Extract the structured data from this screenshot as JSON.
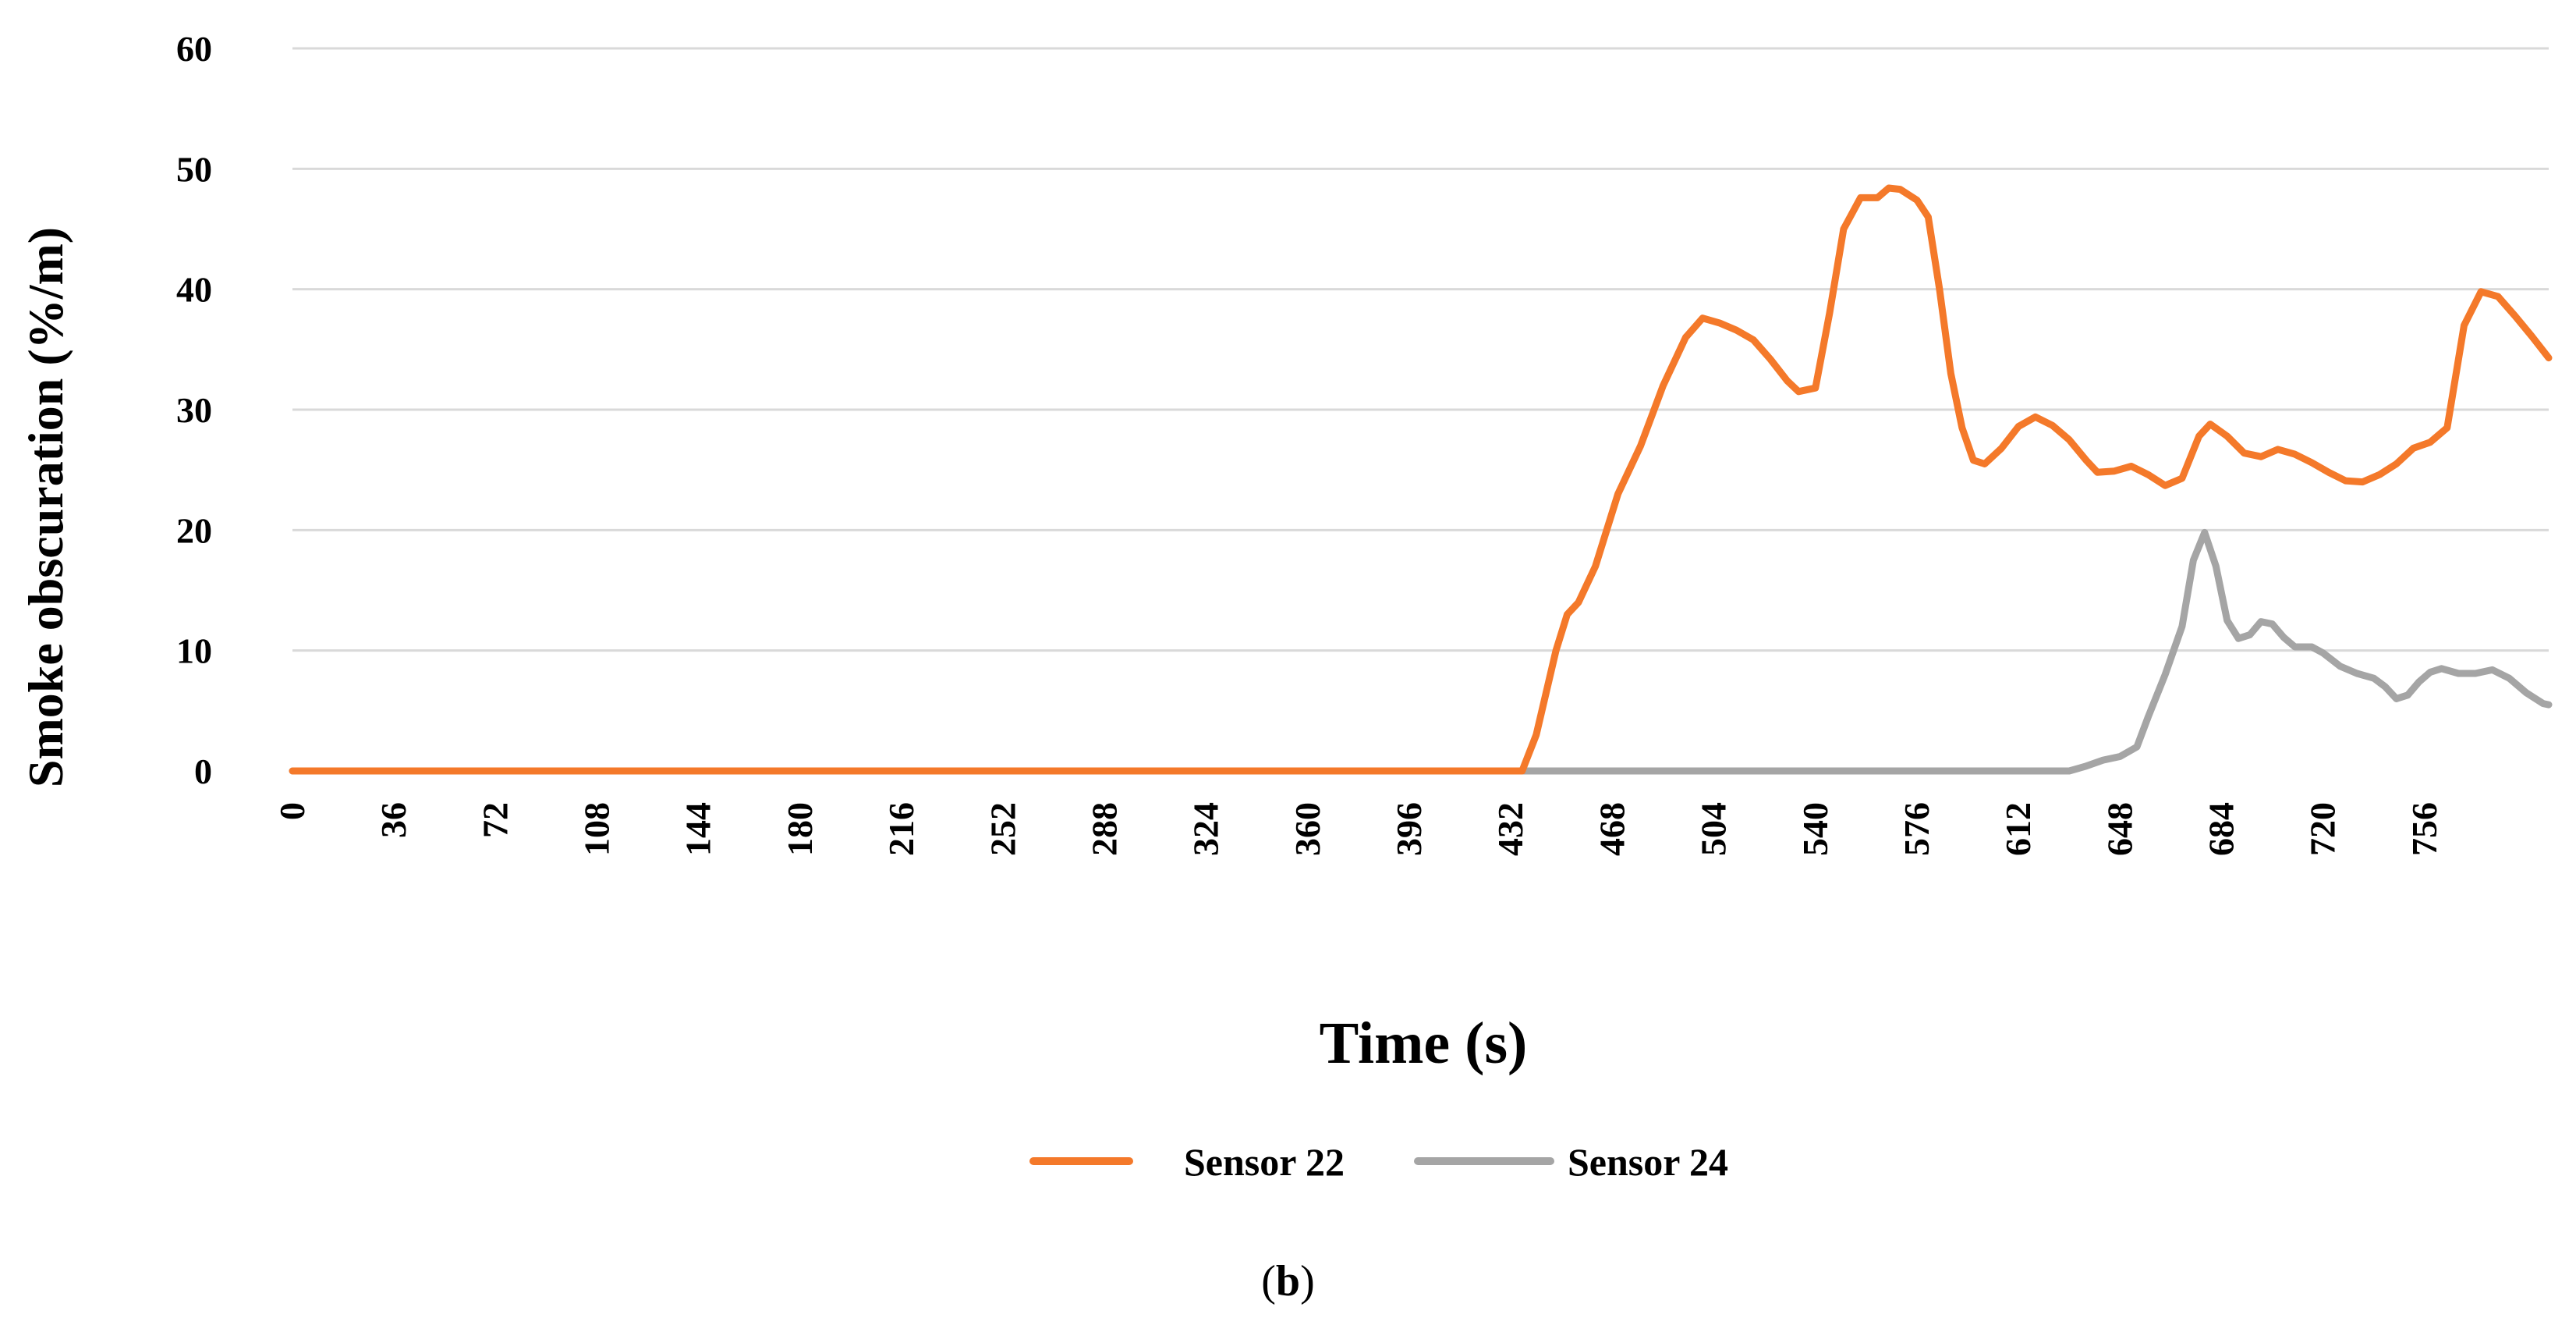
{
  "chart_data": {
    "type": "line",
    "title": "",
    "xlabel": "Time (s)",
    "ylabel": "Smoke obscuration (%/m)",
    "xlim": [
      0,
      800
    ],
    "ylim": [
      0,
      60
    ],
    "x_ticks": [
      0,
      36,
      72,
      108,
      144,
      180,
      216,
      252,
      288,
      324,
      360,
      396,
      432,
      468,
      504,
      540,
      576,
      612,
      648,
      684,
      720,
      756
    ],
    "y_ticks": [
      0,
      10,
      20,
      30,
      40,
      50,
      60
    ],
    "grid": "horizontal",
    "legend_position": "bottom",
    "series": [
      {
        "name": "Sensor 22",
        "color": "#F4792A",
        "points": [
          [
            0,
            0
          ],
          [
            436,
            0
          ],
          [
            441,
            3
          ],
          [
            448,
            10
          ],
          [
            452,
            13
          ],
          [
            456,
            14
          ],
          [
            462,
            17
          ],
          [
            470,
            23
          ],
          [
            478,
            27
          ],
          [
            486,
            32
          ],
          [
            494,
            36
          ],
          [
            500,
            37.6
          ],
          [
            506,
            37.2
          ],
          [
            512,
            36.6
          ],
          [
            518,
            35.8
          ],
          [
            524,
            34.2
          ],
          [
            530,
            32.4
          ],
          [
            534,
            31.5
          ],
          [
            540,
            31.8
          ],
          [
            545,
            38
          ],
          [
            550,
            45
          ],
          [
            556,
            47.6
          ],
          [
            562,
            47.6
          ],
          [
            566,
            48.4
          ],
          [
            570,
            48.3
          ],
          [
            576,
            47.4
          ],
          [
            580,
            46
          ],
          [
            584,
            40
          ],
          [
            588,
            33
          ],
          [
            592,
            28.5
          ],
          [
            596,
            25.8
          ],
          [
            600,
            25.5
          ],
          [
            606,
            26.8
          ],
          [
            612,
            28.6
          ],
          [
            618,
            29.4
          ],
          [
            624,
            28.7
          ],
          [
            630,
            27.5
          ],
          [
            636,
            25.8
          ],
          [
            640,
            24.8
          ],
          [
            646,
            24.9
          ],
          [
            652,
            25.3
          ],
          [
            658,
            24.6
          ],
          [
            664,
            23.7
          ],
          [
            670,
            24.3
          ],
          [
            676,
            27.8
          ],
          [
            680,
            28.8
          ],
          [
            686,
            27.8
          ],
          [
            692,
            26.4
          ],
          [
            698,
            26.1
          ],
          [
            704,
            26.7
          ],
          [
            710,
            26.3
          ],
          [
            716,
            25.6
          ],
          [
            722,
            24.8
          ],
          [
            728,
            24.1
          ],
          [
            734,
            24
          ],
          [
            740,
            24.6
          ],
          [
            746,
            25.5
          ],
          [
            752,
            26.8
          ],
          [
            758,
            27.3
          ],
          [
            764,
            28.5
          ],
          [
            770,
            37
          ],
          [
            776,
            39.8
          ],
          [
            782,
            39.4
          ],
          [
            788,
            37.8
          ],
          [
            794,
            36.1
          ],
          [
            800,
            34.3
          ]
        ]
      },
      {
        "name": "Sensor 24",
        "color": "#A5A5A5",
        "points": [
          [
            0,
            0
          ],
          [
            630,
            0
          ],
          [
            636,
            0.4
          ],
          [
            642,
            0.9
          ],
          [
            648,
            1.2
          ],
          [
            654,
            2
          ],
          [
            658,
            4.5
          ],
          [
            664,
            8
          ],
          [
            670,
            12
          ],
          [
            674,
            17.5
          ],
          [
            678,
            19.8
          ],
          [
            682,
            17
          ],
          [
            686,
            12.5
          ],
          [
            690,
            11
          ],
          [
            694,
            11.3
          ],
          [
            698,
            12.4
          ],
          [
            702,
            12.2
          ],
          [
            706,
            11.1
          ],
          [
            710,
            10.3
          ],
          [
            716,
            10.3
          ],
          [
            720,
            9.8
          ],
          [
            726,
            8.7
          ],
          [
            732,
            8.1
          ],
          [
            738,
            7.7
          ],
          [
            742,
            7
          ],
          [
            746,
            6
          ],
          [
            750,
            6.3
          ],
          [
            754,
            7.4
          ],
          [
            758,
            8.2
          ],
          [
            762,
            8.5
          ],
          [
            768,
            8.1
          ],
          [
            774,
            8.1
          ],
          [
            780,
            8.4
          ],
          [
            786,
            7.7
          ],
          [
            792,
            6.5
          ],
          [
            798,
            5.6
          ],
          [
            800,
            5.5
          ]
        ]
      }
    ]
  },
  "panel_label": {
    "open": "(",
    "letter": "b",
    "close": ")"
  }
}
